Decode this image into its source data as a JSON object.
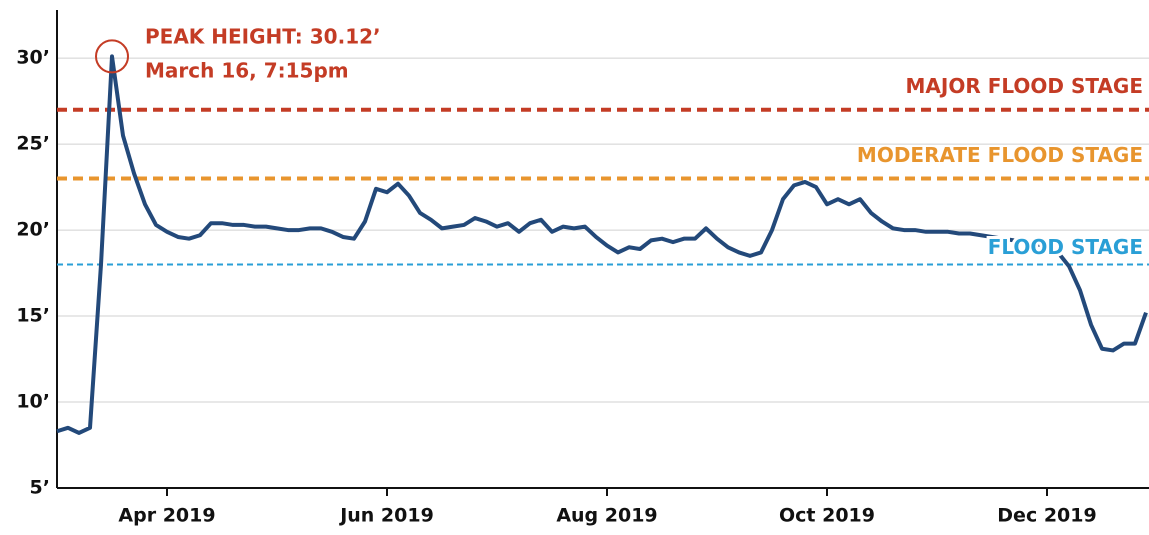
{
  "chart_data": {
    "type": "line",
    "categories": [
      null,
      null,
      null,
      null,
      null,
      null,
      null,
      null,
      null,
      null,
      "Apr 2019",
      null,
      null,
      null,
      null,
      null,
      null,
      null,
      null,
      null,
      null,
      null,
      null,
      null,
      null,
      null,
      null,
      null,
      null,
      null,
      "Jun 2019",
      null,
      null,
      null,
      null,
      null,
      null,
      null,
      null,
      null,
      null,
      null,
      null,
      null,
      null,
      null,
      null,
      null,
      null,
      null,
      "Aug 2019",
      null,
      null,
      null,
      null,
      null,
      null,
      null,
      null,
      null,
      null,
      null,
      null,
      null,
      null,
      null,
      null,
      null,
      null,
      null,
      "Oct 2019",
      null,
      null,
      null,
      null,
      null,
      null,
      null,
      null,
      null,
      null,
      null,
      null,
      null,
      null,
      null,
      null,
      null,
      null,
      null,
      "Dec 2019",
      null,
      null,
      null,
      null,
      null,
      null,
      null,
      null,
      null
    ],
    "series": [
      {
        "color": "#23497a",
        "values": [
          8.3,
          8.5,
          8.2,
          8.5,
          18,
          30.1,
          25.5,
          23.3,
          21.5,
          20.3,
          19.9,
          19.6,
          19.5,
          19.7,
          20.4,
          20.4,
          20.3,
          20.3,
          20.2,
          20.2,
          20.1,
          20.0,
          20.0,
          20.1,
          20.1,
          19.9,
          19.6,
          19.5,
          20.5,
          22.4,
          22.2,
          22.7,
          22.0,
          21.0,
          20.6,
          20.1,
          20.2,
          20.3,
          20.7,
          20.5,
          20.2,
          20.4,
          19.9,
          20.4,
          20.6,
          19.9,
          20.2,
          20.1,
          20.2,
          19.6,
          19.1,
          18.7,
          19.0,
          18.9,
          19.4,
          19.5,
          19.3,
          19.5,
          19.5,
          20.1,
          19.5,
          19.0,
          18.7,
          18.5,
          18.7,
          20.0,
          21.8,
          22.6,
          22.8,
          22.5,
          21.5,
          21.8,
          21.5,
          21.8,
          21.0,
          20.5,
          20.1,
          20.0,
          20.0,
          19.9,
          19.9,
          19.9,
          19.8,
          19.8,
          19.7,
          19.6,
          19.5,
          19.4,
          19.3,
          19.2,
          19.0,
          18.7,
          17.9,
          16.5,
          14.5,
          13.1,
          13.0,
          13.4,
          13.4,
          15.2
        ]
      }
    ],
    "ylim": [
      5,
      32.8
    ],
    "yticks": [
      {
        "value": 5,
        "label": "5’"
      },
      {
        "value": 10,
        "label": "10’"
      },
      {
        "value": 15,
        "label": "15’"
      },
      {
        "value": 20,
        "label": "20’"
      },
      {
        "value": 25,
        "label": "25’"
      },
      {
        "value": 30,
        "label": "30’"
      }
    ],
    "grid": true,
    "reference_lines": [
      {
        "label": "MAJOR FLOOD STAGE",
        "value": 27,
        "color": "#c43c25"
      },
      {
        "label": "MODERATE FLOOD STAGE",
        "value": 23,
        "color": "#e8952e"
      },
      {
        "label": "FLOOD STAGE",
        "value": 18,
        "color": "#2a9fd6"
      }
    ],
    "annotations": [
      "PEAK HEIGHT: 30.12’",
      "March 16, 7:15pm"
    ],
    "annotation_color": "#c43c25"
  }
}
